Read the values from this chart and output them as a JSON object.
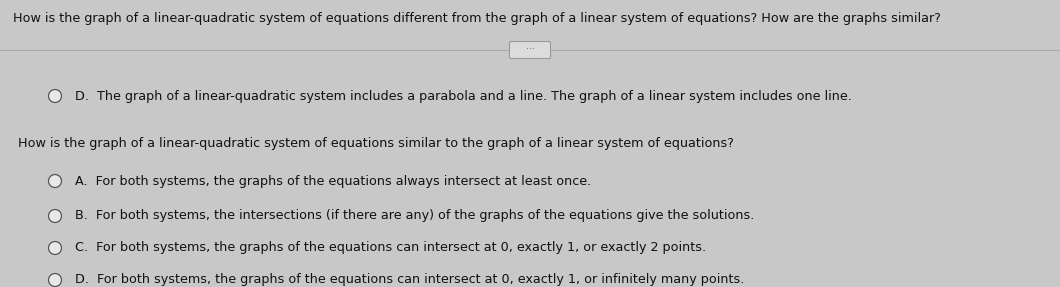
{
  "overall_bg": "#c8c8c8",
  "header_bg": "#bebebe",
  "body_bg": "#e8e8e8",
  "header_text": "How is the graph of a linear-quadratic system of equations different from the graph of a linear system of equations? How are the graphs similar?",
  "divider_color": "#aaaaaa",
  "ellipsis_bg": "#dcdcdc",
  "ellipsis_border": "#999999",
  "answer_d_line1": "D.  The graph of a linear-quadratic system includes a parabola and a line. The graph of a linear system includes one line.",
  "question2": "How is the graph of a linear-quadratic system of equations similar to the graph of a linear system of equations?",
  "option_a": "A.  For both systems, the graphs of the equations always intersect at least once.",
  "option_b": "B.  For both systems, the intersections (if there are any) of the graphs of the equations give the solutions.",
  "option_c": "C.  For both systems, the graphs of the equations can intersect at 0, exactly 1, or exactly 2 points.",
  "option_d": "D.  For both systems, the graphs of the equations can intersect at 0, exactly 1, or infinitely many points.",
  "circle_fill": "#e8e8e8",
  "circle_edge": "#555555",
  "text_color": "#111111",
  "header_fontsize": 9.2,
  "body_fontsize": 9.2,
  "question2_fontsize": 9.2
}
